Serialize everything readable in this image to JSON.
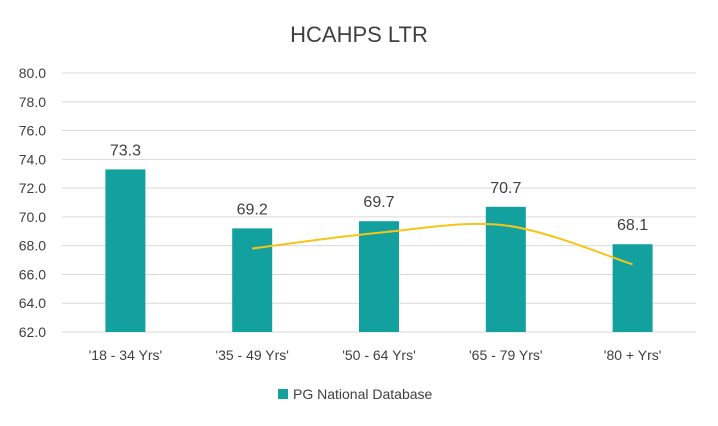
{
  "chart_data": {
    "type": "bar",
    "title": "HCAHPS LTR",
    "categories": [
      "'18 - 34 Yrs'",
      "'35 - 49 Yrs'",
      "'50 - 64 Yrs'",
      "'65 - 79 Yrs'",
      "'80 + Yrs'"
    ],
    "series": [
      {
        "name": "PG National Database",
        "values": [
          73.3,
          69.2,
          69.7,
          70.7,
          68.1
        ],
        "color": "#12a19e"
      }
    ],
    "data_labels": [
      "73.3",
      "69.2",
      "69.7",
      "70.7",
      "68.1"
    ],
    "ylim": [
      62.0,
      80.0
    ],
    "yticks": [
      "62.0",
      "64.0",
      "66.0",
      "68.0",
      "70.0",
      "72.0",
      "74.0",
      "76.0",
      "78.0",
      "80.0"
    ],
    "trendline": {
      "type": "polynomial",
      "color": "#f5c518",
      "points": [
        [
          1,
          67.8
        ],
        [
          2,
          68.9
        ],
        [
          3,
          69.4
        ],
        [
          4,
          66.7
        ]
      ]
    },
    "grid": true,
    "legend_position": "bottom"
  }
}
